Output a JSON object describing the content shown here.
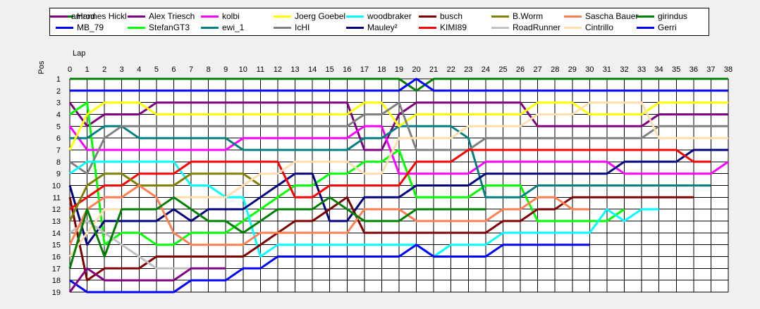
{
  "chart_data": {
    "type": "line",
    "xlabel": "Lap",
    "ylabel": "Pos",
    "xlim": [
      0,
      38
    ],
    "ylim": [
      1,
      19
    ],
    "y_inverted": true,
    "grid": true,
    "legend_position": "top",
    "x_ticks": [
      "0",
      "1",
      "2",
      "3",
      "4",
      "5",
      "6",
      "7",
      "8",
      "9",
      "10",
      "11",
      "12",
      "13",
      "14",
      "15",
      "16",
      "17",
      "18",
      "19",
      "20",
      "21",
      "22",
      "23",
      "24",
      "25",
      "26",
      "27",
      "28",
      "29",
      "30",
      "31",
      "32",
      "33",
      "34",
      "35",
      "36",
      "37",
      "38"
    ],
    "y_ticks": [
      "1",
      "2",
      "3",
      "4",
      "5",
      "6",
      "7",
      "8",
      "9",
      "10",
      "11",
      "12",
      "13",
      "14",
      "15",
      "16",
      "17",
      "18",
      "19"
    ],
    "series": [
      {
        "name": "Hannes Hickl",
        "color": "#008000",
        "values": [
          1,
          1,
          1,
          1,
          1,
          1,
          1,
          1,
          1,
          1,
          1,
          1,
          1,
          1,
          1,
          1,
          1,
          1,
          1,
          1,
          2,
          1,
          1,
          1,
          1,
          1,
          1,
          1,
          1,
          1,
          1,
          1,
          1,
          1,
          1,
          1,
          1,
          1,
          1
        ]
      },
      {
        "name": "MB_79",
        "color": "#0000ff",
        "values": [
          2,
          2,
          2,
          2,
          2,
          2,
          2,
          2,
          2,
          2,
          2,
          2,
          2,
          2,
          2,
          2,
          2,
          2,
          2,
          2,
          1,
          2,
          2,
          2,
          2,
          2,
          2,
          2,
          2,
          2,
          2,
          2,
          2,
          2,
          2,
          2,
          2,
          2,
          2
        ]
      },
      {
        "name": "Alex Triesch",
        "color": "#800080",
        "values": [
          3,
          5,
          4,
          4,
          4,
          3,
          3,
          3,
          3,
          3,
          3,
          3,
          3,
          3,
          3,
          3,
          3,
          7,
          7,
          4,
          3,
          3,
          3,
          3,
          3,
          3,
          3,
          5,
          5,
          5,
          5,
          5,
          5,
          5,
          4,
          4,
          4,
          4,
          4
        ]
      },
      {
        "name": "StefanGT3",
        "color": "#00ff00",
        "values": [
          4,
          3,
          15,
          14,
          14,
          15,
          15,
          14,
          14,
          14,
          13,
          12,
          11,
          10,
          10,
          9,
          9,
          8,
          8,
          7,
          11,
          11,
          11,
          11,
          10,
          10,
          10,
          13,
          13,
          13,
          13,
          13,
          12,
          null,
          null,
          null,
          null,
          null,
          null
        ]
      },
      {
        "name": "kolbi",
        "color": "#ff00ff",
        "values": [
          5,
          7,
          7,
          7,
          7,
          7,
          7,
          7,
          7,
          7,
          6,
          6,
          6,
          6,
          6,
          6,
          6,
          5,
          5,
          9,
          9,
          9,
          9,
          9,
          8,
          8,
          8,
          8,
          8,
          8,
          8,
          8,
          9,
          9,
          9,
          9,
          9,
          9,
          8
        ]
      },
      {
        "name": "ewi_1",
        "color": "#008080",
        "values": [
          6,
          6,
          5,
          5,
          6,
          6,
          6,
          6,
          6,
          6,
          7,
          7,
          7,
          7,
          7,
          7,
          7,
          6,
          6,
          5,
          5,
          5,
          5,
          6,
          11,
          11,
          11,
          10,
          10,
          10,
          10,
          10,
          10,
          10,
          10,
          10,
          10,
          10,
          null
        ]
      },
      {
        "name": "Joerg Goebel",
        "color": "#ffff00",
        "values": [
          7,
          4,
          3,
          3,
          3,
          4,
          4,
          4,
          4,
          4,
          4,
          4,
          4,
          4,
          4,
          4,
          4,
          3,
          3,
          5,
          4,
          4,
          4,
          4,
          4,
          4,
          4,
          3,
          3,
          3,
          4,
          4,
          4,
          4,
          3,
          3,
          3,
          3,
          3
        ]
      },
      {
        "name": "IcHI",
        "color": "#808080",
        "values": [
          8,
          9,
          6,
          5,
          5,
          5,
          5,
          5,
          5,
          5,
          5,
          5,
          5,
          5,
          5,
          5,
          5,
          4,
          4,
          3,
          7,
          7,
          7,
          7,
          6,
          6,
          6,
          6,
          6,
          6,
          6,
          6,
          6,
          6,
          5,
          5,
          5,
          5,
          5
        ]
      },
      {
        "name": "woodbraker",
        "color": "#00ffff",
        "values": [
          9,
          8,
          8,
          8,
          8,
          8,
          8,
          10,
          10,
          11,
          11,
          16,
          15,
          15,
          15,
          15,
          15,
          15,
          15,
          15,
          15,
          16,
          15,
          15,
          15,
          14,
          14,
          14,
          14,
          14,
          14,
          12,
          13,
          12,
          12,
          null,
          null,
          null,
          null
        ]
      },
      {
        "name": "Mauley²",
        "color": "#000080",
        "values": [
          10,
          15,
          13,
          13,
          13,
          13,
          12,
          13,
          12,
          12,
          12,
          11,
          10,
          9,
          9,
          13,
          13,
          11,
          11,
          11,
          10,
          10,
          10,
          10,
          9,
          9,
          9,
          9,
          9,
          9,
          9,
          9,
          8,
          8,
          8,
          8,
          7,
          7,
          7
        ]
      },
      {
        "name": "busch",
        "color": "#800000",
        "values": [
          11,
          18,
          17,
          17,
          17,
          16,
          16,
          16,
          16,
          16,
          16,
          15,
          14,
          13,
          13,
          12,
          11,
          14,
          14,
          14,
          14,
          14,
          14,
          14,
          14,
          13,
          13,
          12,
          12,
          11,
          11,
          11,
          11,
          11,
          11,
          11,
          11,
          null,
          null
        ]
      },
      {
        "name": "KIMI89",
        "color": "#ff0000",
        "values": [
          12,
          11,
          10,
          10,
          9,
          9,
          9,
          8,
          8,
          8,
          8,
          8,
          8,
          11,
          11,
          10,
          10,
          10,
          10,
          10,
          8,
          8,
          8,
          7,
          7,
          7,
          7,
          7,
          7,
          7,
          7,
          7,
          7,
          7,
          7,
          7,
          8,
          8,
          null
        ]
      },
      {
        "name": "B.Worm",
        "color": "#808000",
        "values": [
          13,
          10,
          9,
          9,
          10,
          10,
          10,
          9,
          9,
          9,
          9,
          10,
          null,
          null,
          null,
          null,
          null,
          null,
          null,
          null,
          null,
          null,
          null,
          null,
          null,
          null,
          null,
          null,
          null,
          null,
          null,
          null,
          null,
          null,
          null,
          null,
          null,
          null,
          null
        ]
      },
      {
        "name": "RoadRunner",
        "color": "#c0c0c0",
        "values": [
          14,
          13,
          14,
          15,
          16,
          17,
          17,
          17,
          null,
          null,
          null,
          null,
          null,
          null,
          null,
          null,
          null,
          null,
          null,
          null,
          null,
          null,
          null,
          null,
          null,
          null,
          null,
          null,
          null,
          null,
          null,
          null,
          null,
          null,
          null,
          null,
          null,
          null,
          null
        ]
      },
      {
        "name": "Sascha Bauer",
        "color": "#ff7f50",
        "values": [
          15,
          12,
          11,
          11,
          10,
          11,
          14,
          15,
          15,
          15,
          15,
          14,
          14,
          14,
          14,
          14,
          14,
          12,
          12,
          12,
          13,
          13,
          13,
          13,
          13,
          12,
          12,
          11,
          11,
          12,
          12,
          null,
          null,
          null,
          null,
          null,
          null,
          null,
          null
        ]
      },
      {
        "name": "Cintrillo",
        "color": "#ffdead",
        "values": [
          16,
          14,
          12,
          12,
          12,
          12,
          11,
          11,
          11,
          11,
          10,
          9,
          9,
          8,
          8,
          8,
          8,
          9,
          9,
          6,
          6,
          6,
          6,
          5,
          5,
          5,
          5,
          4,
          4,
          4,
          3,
          3,
          3,
          3,
          6,
          6,
          6,
          6,
          6
        ]
      },
      {
        "name": "girindus",
        "color": "#008000",
        "values": [
          17,
          12,
          16,
          12,
          12,
          12,
          11,
          12,
          13,
          13,
          14,
          13,
          12,
          12,
          12,
          11,
          12,
          13,
          13,
          13,
          12,
          12,
          12,
          12,
          12,
          null,
          null,
          null,
          null,
          null,
          null,
          null,
          null,
          null,
          null,
          null,
          null,
          null,
          null
        ]
      },
      {
        "name": "Gerri",
        "color": "#0000ff",
        "values": [
          18,
          19,
          19,
          19,
          19,
          19,
          19,
          18,
          18,
          18,
          17,
          17,
          16,
          16,
          16,
          16,
          16,
          16,
          16,
          16,
          15,
          16,
          16,
          16,
          16,
          15,
          15,
          15,
          15,
          15,
          15,
          null,
          null,
          null,
          null,
          null,
          null,
          null,
          null
        ]
      },
      {
        "name": "amrod",
        "color": "#800080",
        "values": [
          19,
          17,
          18,
          18,
          18,
          18,
          18,
          17,
          17,
          17,
          null,
          null,
          null,
          null,
          null,
          null,
          null,
          null,
          null,
          null,
          null,
          null,
          null,
          null,
          null,
          null,
          null,
          null,
          null,
          null,
          null,
          null,
          null,
          null,
          null,
          null,
          null,
          null,
          null
        ]
      }
    ]
  }
}
